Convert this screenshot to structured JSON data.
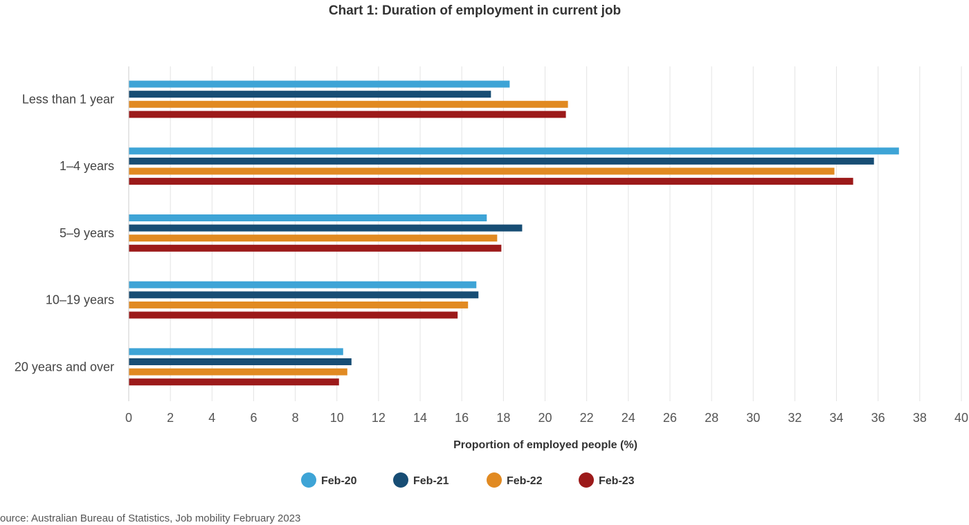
{
  "chart_data": {
    "type": "bar",
    "orientation": "horizontal",
    "title": "Chart 1: Duration of employment in current job",
    "xlabel": "Proportion of employed people (%)",
    "ylabel": "",
    "categories": [
      "Less than 1 year",
      "1–4 years",
      "5–9 years",
      "10–19 years",
      "20 years and over"
    ],
    "series": [
      {
        "name": "Feb-20",
        "color": "#3ea4d6",
        "values": [
          18.3,
          37.0,
          17.2,
          16.7,
          10.3
        ]
      },
      {
        "name": "Feb-21",
        "color": "#174d74",
        "values": [
          17.4,
          35.8,
          18.9,
          16.8,
          10.7
        ]
      },
      {
        "name": "Feb-22",
        "color": "#e18a22",
        "values": [
          21.1,
          33.9,
          17.7,
          16.3,
          10.5
        ]
      },
      {
        "name": "Feb-23",
        "color": "#9c1a1a",
        "values": [
          21.0,
          34.8,
          17.9,
          15.8,
          10.1
        ]
      }
    ],
    "xlim": [
      0,
      40
    ],
    "xticks": [
      "0",
      "2",
      "4",
      "6",
      "8",
      "10",
      "12",
      "14",
      "16",
      "18",
      "20",
      "22",
      "24",
      "26",
      "28",
      "30",
      "32",
      "34",
      "36",
      "38",
      "40"
    ],
    "grid": true,
    "legend_position": "bottom",
    "source": "ource: Australian Bureau of Statistics, Job mobility February 2023"
  }
}
